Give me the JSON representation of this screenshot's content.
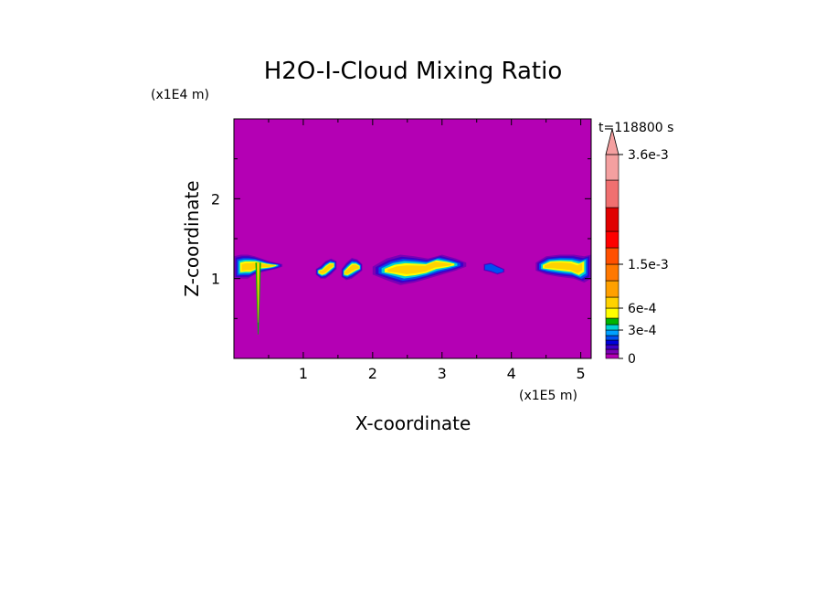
{
  "chart_data": {
    "type": "heatmap",
    "title": "H2O-I-Cloud Mixing Ratio",
    "xlabel": "X-coordinate",
    "ylabel": "Z-coordinate",
    "x_unit": "(x1E5 m)",
    "y_unit": "(x1E4 m)",
    "time_label": "t=118800 s",
    "xlim": [
      0,
      5.15
    ],
    "ylim": [
      0,
      3.0
    ],
    "x_ticks": [
      1,
      2,
      3,
      4,
      5
    ],
    "y_ticks": [
      1,
      2
    ],
    "background_level": 0,
    "colorbar": {
      "levels": [
        0,
        5e-05,
        0.0001,
        0.00015,
        0.0002,
        0.00025,
        0.0003,
        0.0004,
        0.0005,
        0.0006,
        0.0009,
        0.0012,
        0.0015,
        0.0018,
        0.0021,
        0.0024,
        0.0027,
        0.0036
      ],
      "colors": [
        "#b400b4",
        "#7a00b4",
        "#3c00c8",
        "#0000dc",
        "#0050f0",
        "#00a0ff",
        "#00d2d2",
        "#00b400",
        "#ffff00",
        "#ffd200",
        "#ffa000",
        "#ff7800",
        "#ff5000",
        "#ff0000",
        "#e00000",
        "#f07070",
        "#f4a0a0"
      ],
      "tick_labels": [
        {
          "value": 0,
          "label": "0"
        },
        {
          "value": 0.0003,
          "label": "3e-4"
        },
        {
          "value": 0.0006,
          "label": "6e-4"
        },
        {
          "value": 0.0015,
          "label": "1.5e-3"
        },
        {
          "value": 0.0036,
          "label": "3.6e-3"
        }
      ],
      "extend": "max"
    },
    "regions": [
      {
        "name": "left-cloud",
        "xs": [
          0.0,
          0.1,
          0.2,
          0.3,
          0.4,
          0.5,
          0.6,
          0.7
        ],
        "ybot": [
          1.0,
          1.0,
          1.0,
          1.05,
          1.08,
          1.1,
          1.12,
          1.15
        ],
        "ytop": [
          1.28,
          1.3,
          1.3,
          1.28,
          1.25,
          1.22,
          1.2,
          1.18
        ],
        "peak": 0.0006
      },
      {
        "name": "cloud-1",
        "xs": [
          1.18,
          1.25,
          1.32,
          1.4,
          1.48
        ],
        "ybot": [
          1.05,
          1.0,
          1.0,
          1.05,
          1.12
        ],
        "ytop": [
          1.12,
          1.16,
          1.22,
          1.25,
          1.22
        ],
        "peak": 0.0006
      },
      {
        "name": "cloud-2",
        "xs": [
          1.55,
          1.62,
          1.7,
          1.78,
          1.85
        ],
        "ybot": [
          1.02,
          0.98,
          1.0,
          1.05,
          1.1
        ],
        "ytop": [
          1.12,
          1.2,
          1.26,
          1.24,
          1.18
        ],
        "peak": 0.0006
      },
      {
        "name": "cloud-3",
        "xs": [
          2.0,
          2.2,
          2.4,
          2.6,
          2.8,
          3.0,
          3.2,
          3.35
        ],
        "ybot": [
          1.05,
          0.98,
          0.92,
          0.95,
          1.0,
          1.05,
          1.1,
          1.15
        ],
        "ytop": [
          1.15,
          1.25,
          1.3,
          1.28,
          1.25,
          1.3,
          1.25,
          1.2
        ],
        "peak": 0.0006
      },
      {
        "name": "cloud-4",
        "xs": [
          3.6,
          3.7,
          3.8,
          3.9
        ],
        "ybot": [
          1.1,
          1.08,
          1.05,
          1.08
        ],
        "ytop": [
          1.18,
          1.2,
          1.16,
          1.12
        ],
        "peak": 0.0002
      },
      {
        "name": "right-cloud",
        "xs": [
          4.35,
          4.5,
          4.7,
          4.9,
          5.05,
          5.15
        ],
        "ybot": [
          1.1,
          1.05,
          1.02,
          1.0,
          0.95,
          1.0
        ],
        "ytop": [
          1.2,
          1.28,
          1.3,
          1.3,
          1.28,
          1.3
        ],
        "peak": 0.0006
      }
    ],
    "plume": {
      "x": 0.35,
      "ybot": 0.3,
      "ytop": 1.2,
      "peak": 0.0006
    }
  }
}
